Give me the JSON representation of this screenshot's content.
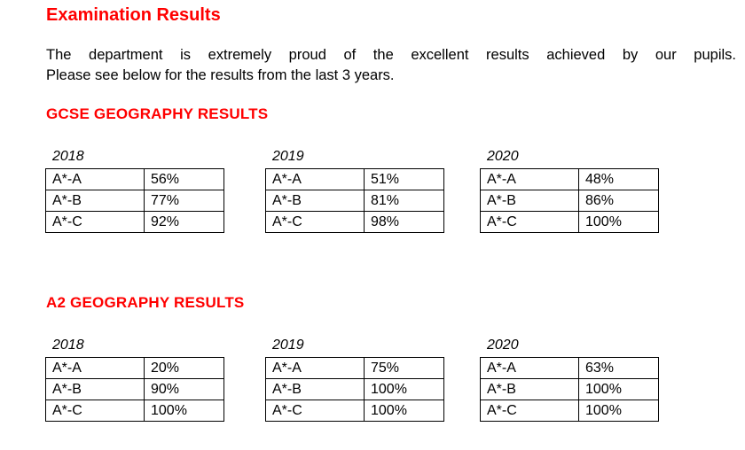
{
  "page": {
    "title": "Examination Results",
    "intro_lines": [
      "The department is extremely proud of the excellent results achieved by our pupils.",
      "Please see below for the results from the last 3 years."
    ]
  },
  "sections": [
    {
      "heading": "GCSE GEOGRAPHY RESULTS",
      "tables": [
        {
          "year": "2018",
          "rows": [
            [
              "A*-A",
              "56%"
            ],
            [
              "A*-B",
              "77%"
            ],
            [
              "A*-C",
              "92%"
            ]
          ]
        },
        {
          "year": "2019",
          "rows": [
            [
              "A*-A",
              "51%"
            ],
            [
              "A*-B",
              "81%"
            ],
            [
              "A*-C",
              "98%"
            ]
          ]
        },
        {
          "year": "2020",
          "rows": [
            [
              "A*-A",
              "48%"
            ],
            [
              "A*-B",
              "86%"
            ],
            [
              "A*-C",
              "100%"
            ]
          ]
        }
      ]
    },
    {
      "heading": "A2 GEOGRAPHY RESULTS",
      "tables": [
        {
          "year": "2018",
          "rows": [
            [
              "A*-A",
              "20%"
            ],
            [
              "A*-B",
              "90%"
            ],
            [
              "A*-C",
              "100%"
            ]
          ]
        },
        {
          "year": "2019",
          "rows": [
            [
              "A*-A",
              "75%"
            ],
            [
              "A*-B",
              "100%"
            ],
            [
              "A*-C",
              "100%"
            ]
          ]
        },
        {
          "year": "2020",
          "rows": [
            [
              "A*-A",
              "63%"
            ],
            [
              "A*-B",
              "100%"
            ],
            [
              "A*-C",
              "100%"
            ]
          ]
        }
      ]
    }
  ],
  "colors": {
    "accent_red": "#FF0000",
    "text_black": "#000000",
    "table_border": "#000000"
  }
}
